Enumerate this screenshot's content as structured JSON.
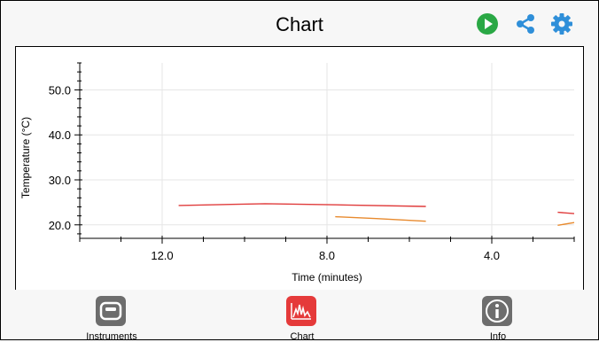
{
  "header": {
    "title": "Chart",
    "icons": {
      "play": "play-icon",
      "share": "share-icon",
      "settings": "gear-icon"
    }
  },
  "colors": {
    "play": "#2aa845",
    "accent": "#2f8fd9",
    "chart_tab": "#e53a3a",
    "tab_icon_gray": "#6d6d6d",
    "series1": "#e03c3c",
    "series2": "#e88a2e"
  },
  "tabs": [
    {
      "label": "Instruments",
      "icon": "instruments-icon"
    },
    {
      "label": "Chart",
      "icon": "chart-icon"
    },
    {
      "label": "Info",
      "icon": "info-icon"
    }
  ],
  "chart_data": {
    "type": "line",
    "xlabel": "Time (minutes)",
    "ylabel": "Temperature (°C)",
    "xlim": [
      14.0,
      2.0
    ],
    "ylim": [
      17.0,
      56.0
    ],
    "x_ticks": [
      "12.0",
      "8.0",
      "4.0"
    ],
    "y_ticks": [
      "20.0",
      "30.0",
      "40.0",
      "50.0"
    ],
    "grid": true,
    "series": [
      {
        "color": "#e03c3c",
        "x": [
          11.6,
          9.5,
          7.5,
          5.6
        ],
        "y": [
          24.3,
          24.7,
          24.4,
          24.1
        ]
      },
      {
        "color": "#e03c3c",
        "x": [
          2.4,
          2.0
        ],
        "y": [
          22.8,
          22.5
        ]
      },
      {
        "color": "#e88a2e",
        "x": [
          7.8,
          6.8,
          5.6
        ],
        "y": [
          21.8,
          21.4,
          20.8
        ]
      },
      {
        "color": "#e88a2e",
        "x": [
          2.4,
          2.0
        ],
        "y": [
          19.9,
          20.5
        ]
      }
    ]
  }
}
